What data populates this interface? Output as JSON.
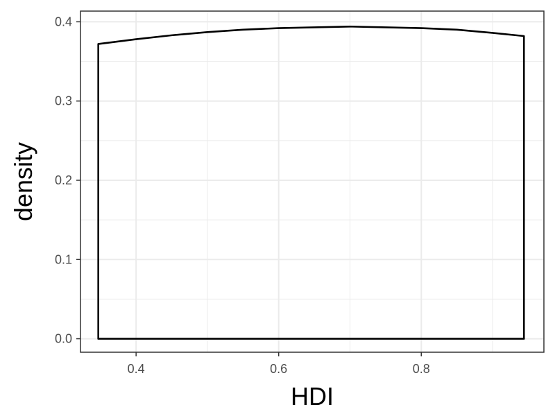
{
  "chart_data": {
    "type": "area",
    "title": "",
    "xlabel": "HDI",
    "ylabel": "density",
    "xlim": [
      0.322,
      0.972
    ],
    "ylim": [
      -0.017,
      0.4135
    ],
    "x_ticks": [
      0.4,
      0.6,
      0.8
    ],
    "x_tick_labels": [
      "0.4",
      "0.6",
      "0.8"
    ],
    "y_ticks": [
      0.0,
      0.1,
      0.2,
      0.3,
      0.4
    ],
    "y_tick_labels": [
      "0.0",
      "0.1",
      "0.2",
      "0.3",
      "0.4"
    ],
    "grid": true,
    "legend": "none",
    "series": [
      {
        "x": [
          0.347,
          0.4,
          0.45,
          0.5,
          0.55,
          0.6,
          0.65,
          0.7,
          0.75,
          0.8,
          0.85,
          0.9,
          0.944
        ],
        "values": [
          0.372,
          0.378,
          0.383,
          0.387,
          0.39,
          0.392,
          0.393,
          0.394,
          0.393,
          0.392,
          0.39,
          0.386,
          0.382
        ]
      }
    ],
    "colors": {
      "line": "#000000",
      "grid": "#ebebeb",
      "panel_border": "#333333",
      "tick_text": "#4d4d4d"
    }
  }
}
